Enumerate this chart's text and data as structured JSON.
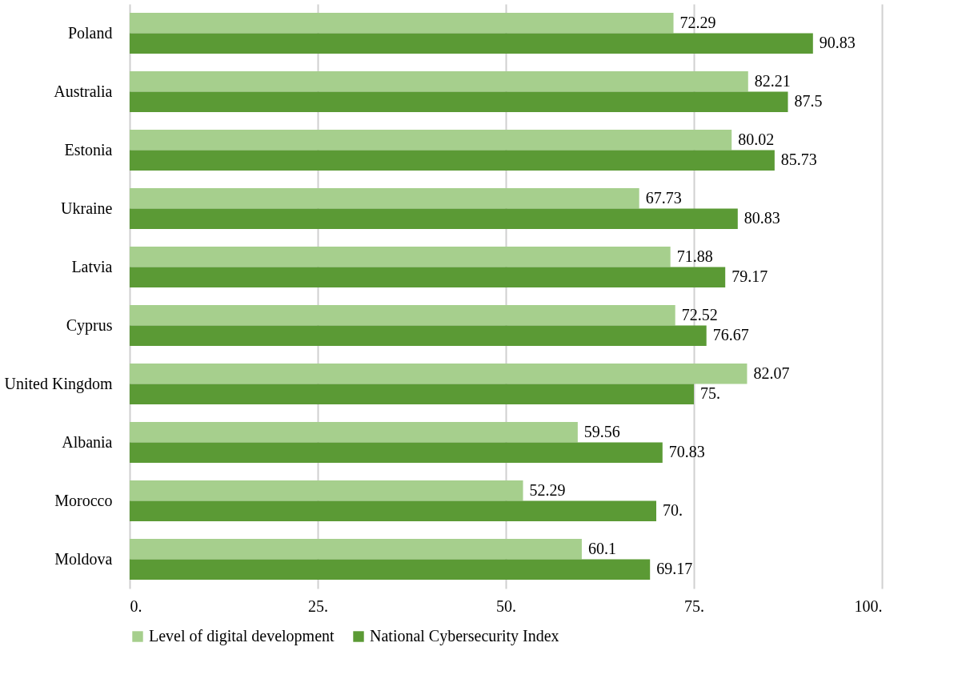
{
  "chart_data": {
    "type": "bar",
    "orientation": "horizontal",
    "categories": [
      "Poland",
      "Australia",
      "Estonia",
      "Ukraine",
      "Latvia",
      "Cyprus",
      "United Kingdom",
      "Albania",
      "Morocco",
      "Moldova"
    ],
    "series": [
      {
        "name": "Level of digital development",
        "color": "#a6cf8d",
        "values": [
          72.29,
          82.21,
          80.02,
          67.73,
          71.88,
          72.52,
          82.07,
          59.56,
          52.29,
          60.1
        ],
        "value_labels": [
          "72.29",
          "82.21",
          "80.02",
          "67.73",
          "71.88",
          "72.52",
          "82.07",
          "59.56",
          "52.29",
          "60.1"
        ]
      },
      {
        "name": "National Cybersecurity Index",
        "color": "#5b9a35",
        "values": [
          90.83,
          87.5,
          85.73,
          80.83,
          79.17,
          76.67,
          75,
          70.83,
          70,
          69.17
        ],
        "value_labels": [
          "90.83",
          "87.5",
          "85.73",
          "80.83",
          "79.17",
          "76.67",
          "75.",
          "70.83",
          "70.",
          "69.17"
        ]
      }
    ],
    "xlim": [
      0,
      100
    ],
    "xticks": [
      {
        "value": 0,
        "label": "0."
      },
      {
        "value": 25,
        "label": "25."
      },
      {
        "value": 50,
        "label": "50."
      },
      {
        "value": 75,
        "label": "75."
      },
      {
        "value": 100,
        "label": "100."
      }
    ],
    "grid": "x",
    "legend": "bottom"
  }
}
